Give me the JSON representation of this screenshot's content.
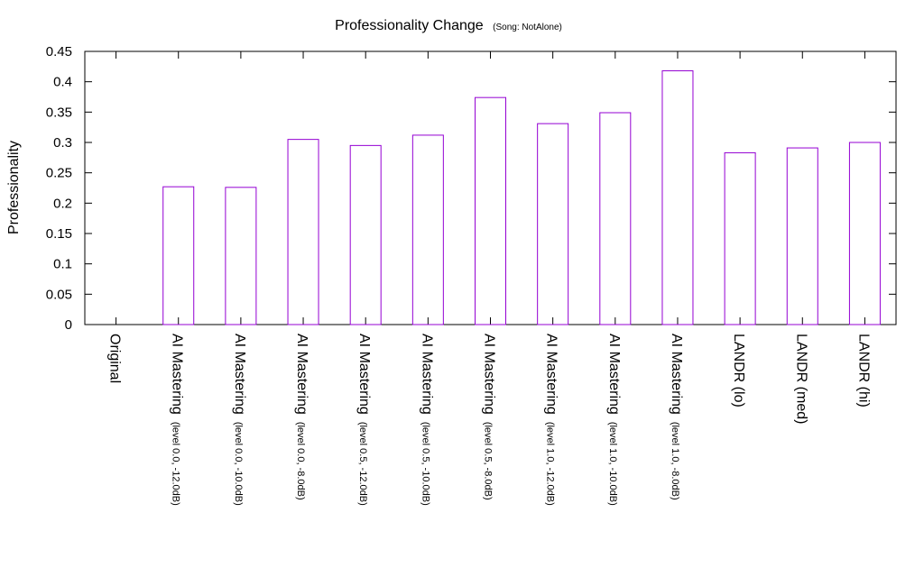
{
  "chart_data": {
    "type": "bar",
    "title": "Professionality Change",
    "subtitle": "(Song: NotAlone)",
    "xlabel": "",
    "ylabel": "Professionality",
    "ylim": [
      0,
      0.45
    ],
    "yticks": [
      "0",
      "0.05",
      "0.1",
      "0.15",
      "0.2",
      "0.25",
      "0.3",
      "0.35",
      "0.4",
      "0.45"
    ],
    "grid": false,
    "bar_color": "#9400d3",
    "categories": [
      {
        "main": "Original",
        "sub": ""
      },
      {
        "main": "AI Mastering",
        "sub": "(level 0.0, -12.0dB)"
      },
      {
        "main": "AI Mastering",
        "sub": "(level 0.0, -10.0dB)"
      },
      {
        "main": "AI Mastering",
        "sub": "(level 0.0, -8.0dB)"
      },
      {
        "main": "AI Mastering",
        "sub": "(level 0.5, -12.0dB)"
      },
      {
        "main": "AI Mastering",
        "sub": "(level 0.5, -10.0dB)"
      },
      {
        "main": "AI Mastering",
        "sub": "(level 0.5, -8.0dB)"
      },
      {
        "main": "AI Mastering",
        "sub": "(level 1.0, -12.0dB)"
      },
      {
        "main": "AI Mastering",
        "sub": "(level 1.0, -10.0dB)"
      },
      {
        "main": "AI Mastering",
        "sub": "(level 1.0, -8.0dB)"
      },
      {
        "main": "LANDR (lo)",
        "sub": ""
      },
      {
        "main": "LANDR (med)",
        "sub": ""
      },
      {
        "main": "LANDR (hi)",
        "sub": ""
      }
    ],
    "values": [
      0,
      0.227,
      0.226,
      0.305,
      0.295,
      0.312,
      0.374,
      0.331,
      0.349,
      0.418,
      0.283,
      0.291,
      0.3
    ]
  }
}
